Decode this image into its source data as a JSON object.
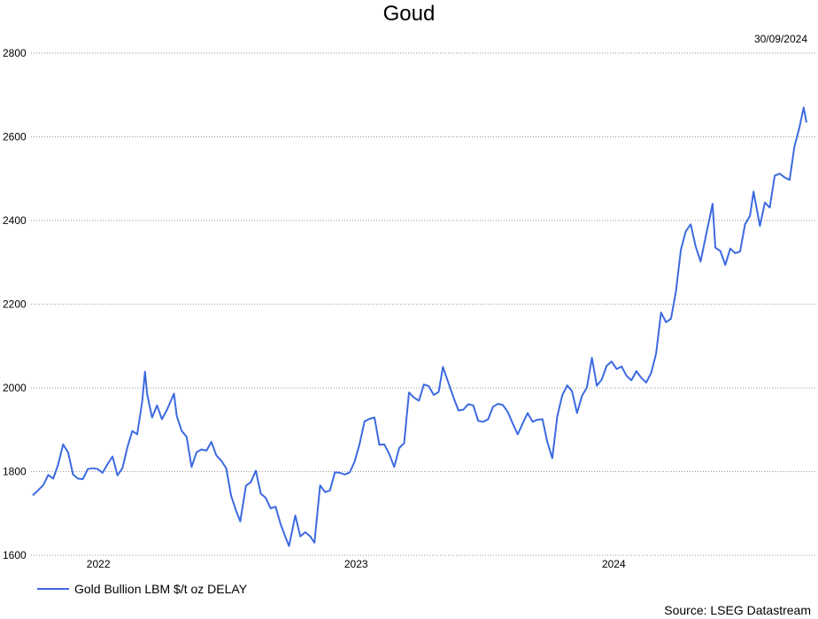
{
  "chart_data": {
    "type": "line",
    "title": "Goud",
    "date_label": "30/09/2024",
    "source": "Source: LSEG Datastream",
    "xlabel": "",
    "ylabel": "",
    "ylim": [
      1600,
      2800
    ],
    "yticks": [
      1600,
      1800,
      2000,
      2200,
      2400,
      2600,
      2800
    ],
    "xlim": [
      "2021-09-30",
      "2024-09-30"
    ],
    "xticks": [
      {
        "label": "2022",
        "date": "2022-01-01"
      },
      {
        "label": "2023",
        "date": "2023-01-01"
      },
      {
        "label": "2024",
        "date": "2024-01-01"
      }
    ],
    "grid": true,
    "legend_position": "bottom-left",
    "series": [
      {
        "name": "Gold Bullion LBM $/t oz DELAY",
        "color": "#3d6ae0",
        "points": [
          [
            "2021-09-30",
            1743
          ],
          [
            "2021-10-08",
            1756
          ],
          [
            "2021-10-15",
            1768
          ],
          [
            "2021-10-22",
            1792
          ],
          [
            "2021-10-29",
            1783
          ],
          [
            "2021-11-05",
            1817
          ],
          [
            "2021-11-12",
            1865
          ],
          [
            "2021-11-19",
            1846
          ],
          [
            "2021-11-26",
            1793
          ],
          [
            "2021-12-03",
            1783
          ],
          [
            "2021-12-10",
            1782
          ],
          [
            "2021-12-17",
            1806
          ],
          [
            "2021-12-24",
            1808
          ],
          [
            "2021-12-31",
            1806
          ],
          [
            "2022-01-07",
            1797
          ],
          [
            "2022-01-14",
            1818
          ],
          [
            "2022-01-21",
            1836
          ],
          [
            "2022-01-28",
            1791
          ],
          [
            "2022-02-04",
            1808
          ],
          [
            "2022-02-11",
            1858
          ],
          [
            "2022-02-18",
            1897
          ],
          [
            "2022-02-25",
            1889
          ],
          [
            "2022-03-04",
            1967
          ],
          [
            "2022-03-08",
            2039
          ],
          [
            "2022-03-11",
            1985
          ],
          [
            "2022-03-18",
            1929
          ],
          [
            "2022-03-25",
            1958
          ],
          [
            "2022-04-01",
            1925
          ],
          [
            "2022-04-08",
            1947
          ],
          [
            "2022-04-18",
            1986
          ],
          [
            "2022-04-22",
            1932
          ],
          [
            "2022-04-29",
            1897
          ],
          [
            "2022-05-06",
            1883
          ],
          [
            "2022-05-13",
            1811
          ],
          [
            "2022-05-20",
            1846
          ],
          [
            "2022-05-27",
            1853
          ],
          [
            "2022-06-03",
            1850
          ],
          [
            "2022-06-10",
            1871
          ],
          [
            "2022-06-17",
            1839
          ],
          [
            "2022-06-24",
            1826
          ],
          [
            "2022-07-01",
            1808
          ],
          [
            "2022-07-08",
            1742
          ],
          [
            "2022-07-15",
            1706
          ],
          [
            "2022-07-21",
            1681
          ],
          [
            "2022-07-29",
            1766
          ],
          [
            "2022-08-05",
            1775
          ],
          [
            "2022-08-12",
            1802
          ],
          [
            "2022-08-19",
            1747
          ],
          [
            "2022-08-26",
            1737
          ],
          [
            "2022-09-02",
            1712
          ],
          [
            "2022-09-09",
            1716
          ],
          [
            "2022-09-16",
            1675
          ],
          [
            "2022-09-23",
            1643
          ],
          [
            "2022-09-28",
            1622
          ],
          [
            "2022-10-07",
            1695
          ],
          [
            "2022-10-14",
            1645
          ],
          [
            "2022-10-21",
            1655
          ],
          [
            "2022-10-28",
            1645
          ],
          [
            "2022-11-03",
            1630
          ],
          [
            "2022-11-11",
            1767
          ],
          [
            "2022-11-18",
            1751
          ],
          [
            "2022-11-25",
            1755
          ],
          [
            "2022-12-02",
            1798
          ],
          [
            "2022-12-09",
            1797
          ],
          [
            "2022-12-16",
            1793
          ],
          [
            "2022-12-23",
            1798
          ],
          [
            "2022-12-30",
            1824
          ],
          [
            "2023-01-06",
            1866
          ],
          [
            "2023-01-13",
            1920
          ],
          [
            "2023-01-20",
            1926
          ],
          [
            "2023-01-27",
            1929
          ],
          [
            "2023-02-03",
            1864
          ],
          [
            "2023-02-10",
            1865
          ],
          [
            "2023-02-17",
            1842
          ],
          [
            "2023-02-24",
            1811
          ],
          [
            "2023-03-03",
            1856
          ],
          [
            "2023-03-10",
            1868
          ],
          [
            "2023-03-17",
            1989
          ],
          [
            "2023-03-24",
            1977
          ],
          [
            "2023-03-31",
            1969
          ],
          [
            "2023-04-07",
            2008
          ],
          [
            "2023-04-14",
            2004
          ],
          [
            "2023-04-21",
            1983
          ],
          [
            "2023-04-28",
            1990
          ],
          [
            "2023-05-04",
            2050
          ],
          [
            "2023-05-12",
            2011
          ],
          [
            "2023-05-19",
            1977
          ],
          [
            "2023-05-26",
            1946
          ],
          [
            "2023-06-02",
            1948
          ],
          [
            "2023-06-09",
            1961
          ],
          [
            "2023-06-16",
            1958
          ],
          [
            "2023-06-23",
            1921
          ],
          [
            "2023-06-30",
            1919
          ],
          [
            "2023-07-07",
            1925
          ],
          [
            "2023-07-14",
            1955
          ],
          [
            "2023-07-21",
            1962
          ],
          [
            "2023-07-28",
            1959
          ],
          [
            "2023-08-04",
            1942
          ],
          [
            "2023-08-11",
            1914
          ],
          [
            "2023-08-18",
            1889
          ],
          [
            "2023-08-25",
            1915
          ],
          [
            "2023-09-01",
            1940
          ],
          [
            "2023-09-08",
            1919
          ],
          [
            "2023-09-15",
            1924
          ],
          [
            "2023-09-22",
            1925
          ],
          [
            "2023-09-29",
            1870
          ],
          [
            "2023-10-06",
            1832
          ],
          [
            "2023-10-13",
            1932
          ],
          [
            "2023-10-20",
            1982
          ],
          [
            "2023-10-27",
            2006
          ],
          [
            "2023-11-03",
            1992
          ],
          [
            "2023-11-10",
            1940
          ],
          [
            "2023-11-17",
            1981
          ],
          [
            "2023-11-24",
            2001
          ],
          [
            "2023-12-01",
            2072
          ],
          [
            "2023-12-08",
            2005
          ],
          [
            "2023-12-15",
            2020
          ],
          [
            "2023-12-22",
            2053
          ],
          [
            "2023-12-29",
            2063
          ],
          [
            "2024-01-05",
            2045
          ],
          [
            "2024-01-12",
            2051
          ],
          [
            "2024-01-19",
            2029
          ],
          [
            "2024-01-26",
            2018
          ],
          [
            "2024-02-02",
            2040
          ],
          [
            "2024-02-09",
            2024
          ],
          [
            "2024-02-16",
            2013
          ],
          [
            "2024-02-23",
            2036
          ],
          [
            "2024-03-01",
            2082
          ],
          [
            "2024-03-08",
            2180
          ],
          [
            "2024-03-15",
            2157
          ],
          [
            "2024-03-22",
            2165
          ],
          [
            "2024-03-29",
            2230
          ],
          [
            "2024-04-05",
            2330
          ],
          [
            "2024-04-12",
            2374
          ],
          [
            "2024-04-19",
            2391
          ],
          [
            "2024-04-26",
            2338
          ],
          [
            "2024-05-03",
            2302
          ],
          [
            "2024-05-10",
            2360
          ],
          [
            "2024-05-17",
            2415
          ],
          [
            "2024-05-20",
            2440
          ],
          [
            "2024-05-24",
            2335
          ],
          [
            "2024-05-31",
            2327
          ],
          [
            "2024-06-07",
            2294
          ],
          [
            "2024-06-14",
            2333
          ],
          [
            "2024-06-21",
            2322
          ],
          [
            "2024-06-28",
            2326
          ],
          [
            "2024-07-05",
            2391
          ],
          [
            "2024-07-12",
            2411
          ],
          [
            "2024-07-17",
            2469
          ],
          [
            "2024-07-26",
            2387
          ],
          [
            "2024-08-02",
            2443
          ],
          [
            "2024-08-09",
            2431
          ],
          [
            "2024-08-16",
            2507
          ],
          [
            "2024-08-23",
            2512
          ],
          [
            "2024-08-30",
            2503
          ],
          [
            "2024-09-06",
            2497
          ],
          [
            "2024-09-13",
            2577
          ],
          [
            "2024-09-20",
            2622
          ],
          [
            "2024-09-26",
            2670
          ],
          [
            "2024-09-30",
            2634
          ]
        ]
      }
    ]
  }
}
